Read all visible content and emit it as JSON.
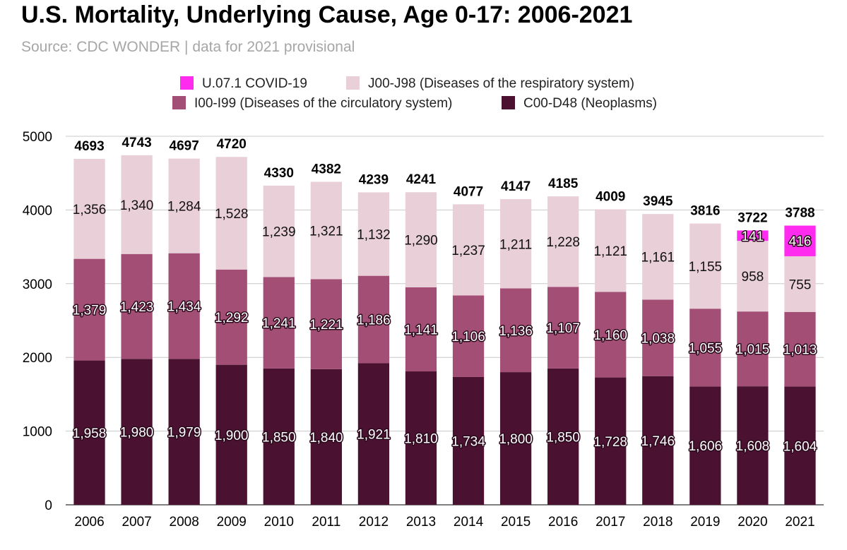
{
  "title": "U.S. Mortality, Underlying Cause, Age 0-17: 2006-2021",
  "subtitle": "Source: CDC WONDER | data for 2021 provisional",
  "chart_data": {
    "type": "bar",
    "stacked": true,
    "categories": [
      "2006",
      "2007",
      "2008",
      "2009",
      "2010",
      "2011",
      "2012",
      "2013",
      "2014",
      "2015",
      "2016",
      "2017",
      "2018",
      "2019",
      "2020",
      "2021"
    ],
    "series": [
      {
        "name": "C00-D48 (Neoplasms)",
        "color": "#4a1130",
        "values": [
          1958,
          1980,
          1979,
          1900,
          1850,
          1840,
          1921,
          1810,
          1734,
          1800,
          1850,
          1728,
          1746,
          1606,
          1608,
          1604
        ],
        "labels": [
          "1,958",
          "1,980",
          "1,979",
          "1,900",
          "1,850",
          "1,840",
          "1,921",
          "1,810",
          "1,734",
          "1,800",
          "1,850",
          "1,728",
          "1,746",
          "1,606",
          "1,608",
          "1,604"
        ]
      },
      {
        "name": "I00-I99 (Diseases of the circulatory system)",
        "color": "#a34f75",
        "values": [
          1379,
          1423,
          1434,
          1292,
          1241,
          1221,
          1186,
          1141,
          1106,
          1136,
          1107,
          1160,
          1038,
          1055,
          1015,
          1013
        ],
        "labels": [
          "1,379",
          "1,423",
          "1,434",
          "1,292",
          "1,241",
          "1,221",
          "1,186",
          "1,141",
          "1,106",
          "1,136",
          "1,107",
          "1,160",
          "1,038",
          "1,055",
          "1,015",
          "1,013"
        ]
      },
      {
        "name": "J00-J98 (Diseases of the respiratory system)",
        "color": "#e9cfd8",
        "values": [
          1356,
          1340,
          1284,
          1528,
          1239,
          1321,
          1132,
          1290,
          1237,
          1211,
          1228,
          1121,
          1161,
          1155,
          958,
          755
        ],
        "labels": [
          "1,356",
          "1,340",
          "1,284",
          "1,528",
          "1,239",
          "1,321",
          "1,132",
          "1,290",
          "1,237",
          "1,211",
          "1,228",
          "1,121",
          "1,161",
          "1,155",
          "958",
          "755"
        ]
      },
      {
        "name": "U.07.1 COVID-19",
        "color": "#ff2cf0",
        "values": [
          0,
          0,
          0,
          0,
          0,
          0,
          0,
          0,
          0,
          0,
          0,
          0,
          0,
          0,
          141,
          416
        ],
        "labels": [
          "",
          "",
          "",
          "",
          "",
          "",
          "",
          "",
          "",
          "",
          "",
          "",
          "",
          "",
          "141",
          "416"
        ]
      }
    ],
    "totals": [
      "4693",
      "4743",
      "4697",
      "4720",
      "4330",
      "4382",
      "4239",
      "4241",
      "4077",
      "4147",
      "4185",
      "4009",
      "3945",
      "3816",
      "3722",
      "3788"
    ],
    "legend_order": [
      "U.07.1 COVID-19",
      "J00-J98 (Diseases of the respiratory system)",
      "I00-I99 (Diseases of the circulatory system)",
      "C00-D48 (Neoplasms)"
    ],
    "y_ticks": [
      "0",
      "1000",
      "2000",
      "3000",
      "4000",
      "5000"
    ],
    "ylim": [
      0,
      5000
    ],
    "grid": true,
    "legend_position": "top"
  }
}
